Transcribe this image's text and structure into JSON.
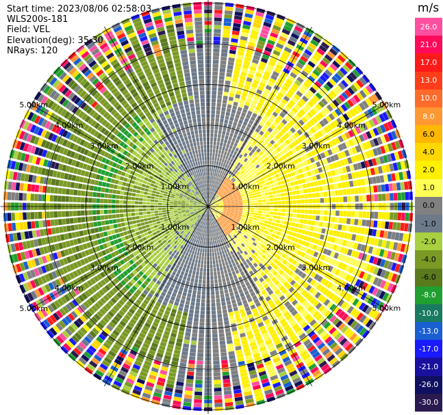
{
  "header": {
    "start_time": "Start time: 2023/08/06 02:58:03",
    "instrument": "WLS200s-181",
    "field": "Field: VEL",
    "elevation": "Elevation(deg): 35.30",
    "nrays": "NRays: 120"
  },
  "colorbar": {
    "unit": "m/s",
    "labels": [
      "26.0",
      "21.0",
      "17.0",
      "13.0",
      "10.0",
      "8.0",
      "6.0",
      "4.0",
      "2.0",
      "1.0",
      "0.0",
      "-1.0",
      "-2.0",
      "-4.0",
      "-6.0",
      "-8.0",
      "-10.0",
      "-13.0",
      "-17.0",
      "-21.0",
      "-26.0",
      "-30.0"
    ],
    "colors": [
      "#ff4fa0",
      "#ff0a5a",
      "#ff1a1a",
      "#ff3d1a",
      "#ff6b2a",
      "#ff9833",
      "#ffb700",
      "#ffd800",
      "#fff000",
      "#ffff55",
      "#808080",
      "#6c7a8a",
      "#a8d040",
      "#7a9a25",
      "#5a7a1e",
      "#20a030",
      "#1a7a60",
      "#1a5fd0",
      "#1a1aff",
      "#1a10a0",
      "#101060",
      "#2a1a50"
    ]
  },
  "chart_data": {
    "type": "heatmap",
    "projection": "polar PPI",
    "field": "VEL",
    "units": "m/s",
    "value_range": [
      -30,
      26
    ],
    "nrays": 120,
    "range_rings": [
      "1.00km",
      "2.00km",
      "3.00km",
      "4.00km",
      "5.00km"
    ],
    "range_ring_values_km": [
      1,
      2,
      3,
      4,
      5
    ],
    "max_range_km": 5.1,
    "radial_spokes_deg": [
      0,
      30,
      60,
      90,
      120,
      150,
      180,
      210,
      240,
      270,
      300,
      330
    ],
    "ring_label_azimuths_deg": [
      60,
      120,
      240,
      300
    ],
    "velocity_pattern": {
      "west_sector": "negative (approaching) -2 to -6 m/s",
      "east_sector": "positive (receding) 1 to 4 m/s",
      "north_south_band": "near zero",
      "outer_range": "noise"
    }
  }
}
